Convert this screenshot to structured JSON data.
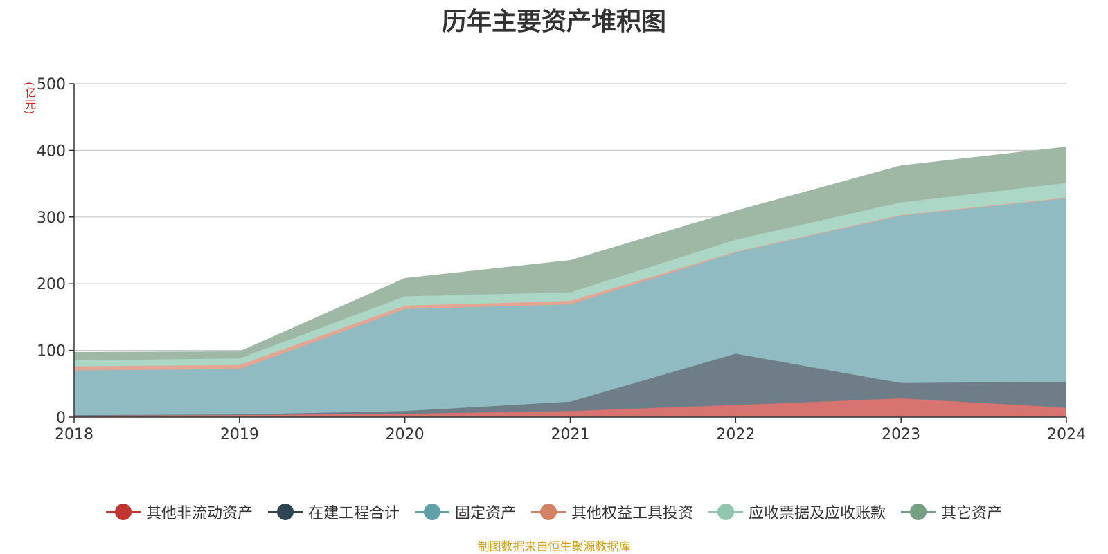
{
  "chart_data": {
    "type": "area",
    "stacked": true,
    "title": "历年主要资产堆积图",
    "unit": "(亿元)",
    "x": [
      "2018",
      "2019",
      "2020",
      "2021",
      "2022",
      "2023",
      "2024"
    ],
    "ylim": [
      0,
      500
    ],
    "yticks": [
      0,
      100,
      200,
      300,
      400,
      500
    ],
    "grid": true,
    "legend_position": "bottom",
    "series": [
      {
        "name": "其他非流动资产",
        "color": "#c23531",
        "fill": "#d77370",
        "values": [
          2,
          3,
          5,
          9,
          18,
          28,
          14
        ]
      },
      {
        "name": "在建工程合计",
        "color": "#2f4554",
        "fill": "#6e7d88",
        "values": [
          1,
          1,
          4,
          14,
          77,
          23,
          39
        ]
      },
      {
        "name": "固定资产",
        "color": "#61a0a8",
        "fill": "#91bbc2",
        "values": [
          67,
          68,
          153,
          146,
          152,
          251,
          275
        ]
      },
      {
        "name": "其他权益工具投资",
        "color": "#d48265",
        "fill": "#e5a592",
        "values": [
          6,
          6,
          5,
          5,
          1,
          1,
          1
        ]
      },
      {
        "name": "应收票据及应收账款",
        "color": "#91c7ae",
        "fill": "#acd6c6",
        "values": [
          9,
          10,
          14,
          13,
          18,
          19,
          22
        ]
      },
      {
        "name": "其它资产",
        "color": "#749f83",
        "fill": "#9eb8a5",
        "values": [
          12,
          10,
          27,
          48,
          43,
          55,
          54
        ]
      }
    ]
  },
  "source_note": "制图数据来自恒生聚源数据库"
}
